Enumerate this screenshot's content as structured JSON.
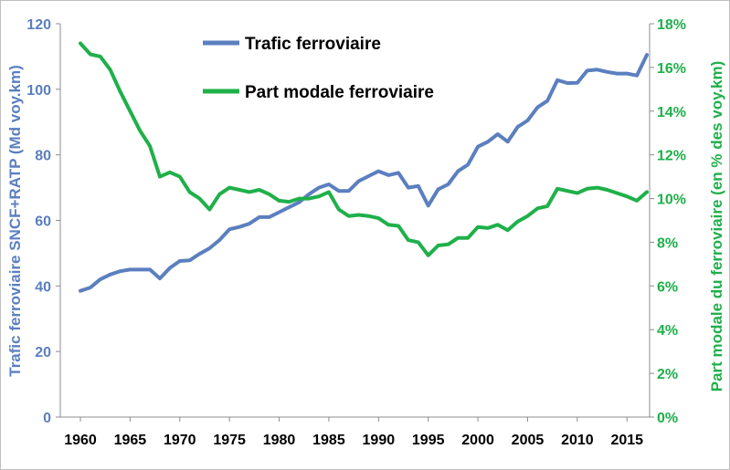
{
  "chart_data": {
    "type": "line",
    "x": [
      1960,
      1961,
      1962,
      1963,
      1964,
      1965,
      1966,
      1967,
      1968,
      1969,
      1970,
      1971,
      1972,
      1973,
      1974,
      1975,
      1976,
      1977,
      1978,
      1979,
      1980,
      1981,
      1982,
      1983,
      1984,
      1985,
      1986,
      1987,
      1988,
      1989,
      1990,
      1991,
      1992,
      1993,
      1994,
      1995,
      1996,
      1997,
      1998,
      1999,
      2000,
      2001,
      2002,
      2003,
      2004,
      2005,
      2006,
      2007,
      2008,
      2009,
      2010,
      2011,
      2012,
      2013,
      2014,
      2015,
      2016,
      2017
    ],
    "series": [
      {
        "name": "Trafic ferroviaire",
        "axis": "left",
        "color": "#5b7fbf",
        "values": [
          38.5,
          39.5,
          42,
          43.5,
          44.5,
          45,
          45,
          45,
          42.3,
          45.5,
          47.6,
          47.8,
          49.8,
          51.5,
          54,
          57.3,
          58,
          59,
          61,
          61,
          62.5,
          64,
          65.5,
          68,
          70,
          71,
          69,
          69,
          72,
          73.5,
          75,
          73.8,
          74.5,
          70,
          70.5,
          64.5,
          69.5,
          71,
          75,
          77,
          82.5,
          84,
          86.3,
          84,
          88.5,
          90.5,
          94.5,
          96.5,
          102.8,
          101.9,
          102,
          105.7,
          106,
          105.3,
          104.8,
          104.8,
          104.2,
          110.5
        ]
      },
      {
        "name": "Part modale ferroviaire",
        "axis": "right",
        "color": "#1fb04a",
        "values": [
          17.1,
          16.6,
          16.5,
          15.9,
          14.9,
          14.0,
          13.1,
          12.4,
          11.0,
          11.2,
          11.0,
          10.3,
          10.0,
          9.5,
          10.2,
          10.5,
          10.4,
          10.3,
          10.4,
          10.2,
          9.9,
          9.85,
          10.0,
          10.0,
          10.1,
          10.3,
          9.5,
          9.2,
          9.25,
          9.2,
          9.1,
          8.8,
          8.75,
          8.1,
          8.0,
          7.4,
          7.85,
          7.9,
          8.2,
          8.2,
          8.7,
          8.65,
          8.8,
          8.55,
          8.95,
          9.2,
          9.55,
          9.65,
          10.45,
          10.35,
          10.25,
          10.45,
          10.5,
          10.4,
          10.25,
          10.1,
          9.9,
          10.3
        ]
      }
    ],
    "xlim": [
      1960,
      2017
    ],
    "xticks": [
      1960,
      1965,
      1970,
      1975,
      1980,
      1985,
      1990,
      1995,
      2000,
      2005,
      2010,
      2015
    ],
    "y_left": {
      "label": "Trafic ferroviaire SNCF+RATP (Md voy.km)",
      "lim": [
        0,
        120
      ],
      "ticks": [
        0,
        20,
        40,
        60,
        80,
        100,
        120
      ],
      "tick_labels": [
        "0",
        "20",
        "40",
        "60",
        "80",
        "100",
        "120"
      ]
    },
    "y_right": {
      "label": "Part modale du ferroviaire (en % des voy.km)",
      "lim": [
        0,
        18
      ],
      "ticks": [
        0,
        2,
        4,
        6,
        8,
        10,
        12,
        14,
        16,
        18
      ],
      "tick_labels": [
        "0%",
        "2%",
        "4%",
        "6%",
        "8%",
        "10%",
        "12%",
        "14%",
        "16%",
        "18%"
      ]
    },
    "grid": false,
    "legend_position": "top-center",
    "title": ""
  }
}
